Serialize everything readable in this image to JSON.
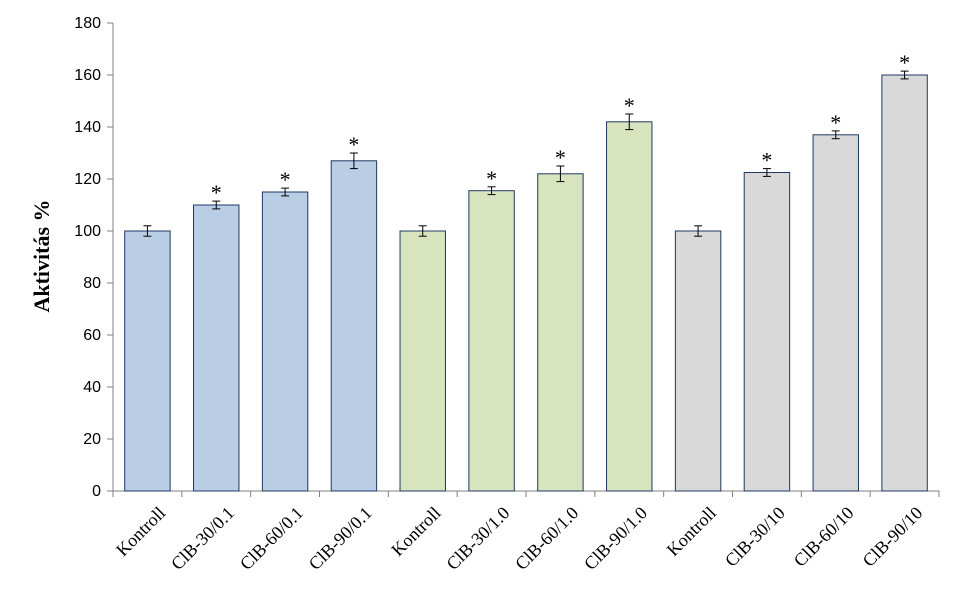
{
  "chart_data": {
    "type": "bar",
    "title": "",
    "xlabel": "",
    "ylabel": "Aktivitás %",
    "ylim": [
      0,
      180
    ],
    "yticks": [
      0,
      20,
      40,
      60,
      80,
      100,
      120,
      140,
      160,
      180
    ],
    "grid": false,
    "legend": "none",
    "categories": [
      "Kontroll",
      "ClB-30/0.1",
      "ClB-60/0.1",
      "ClB-90/0.1",
      "Kontroll",
      "ClB-30/1.0",
      "ClB-60/1.0",
      "ClB-90/1.0",
      "Kontroll",
      "ClB-30/10",
      "ClB-60/10",
      "ClB-90/10"
    ],
    "values": [
      100,
      110,
      115,
      127,
      100,
      115.5,
      122,
      142,
      100,
      122.5,
      137,
      160
    ],
    "errors": [
      2,
      1.5,
      1.5,
      3,
      2,
      1.5,
      3,
      3,
      2,
      1.5,
      1.5,
      1.5
    ],
    "significance": [
      "",
      "*",
      "*",
      "*",
      "",
      "*",
      "*",
      "*",
      "",
      "*",
      "*",
      "*"
    ],
    "bar_colors": [
      "#b9cde5",
      "#b9cde5",
      "#b9cde5",
      "#b9cde5",
      "#d7e4bd",
      "#d7e4bd",
      "#d7e4bd",
      "#d7e4bd",
      "#d9d9d9",
      "#d9d9d9",
      "#d9d9d9",
      "#d9d9d9"
    ],
    "bar_outline_color": "#1f3864"
  }
}
